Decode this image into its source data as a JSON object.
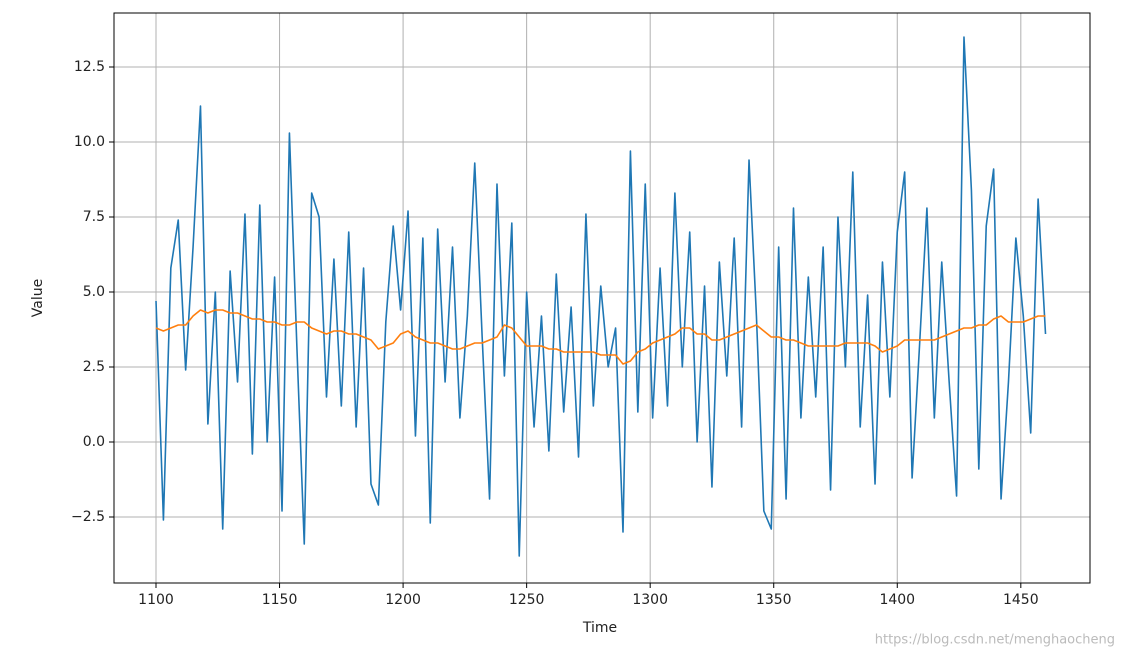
{
  "chart_data": {
    "type": "line",
    "xlabel": "Time",
    "ylabel": "Value",
    "annotation": "https://blog.csdn.net/menghaocheng",
    "x": [
      1100,
      1103,
      1106,
      1109,
      1112,
      1115,
      1118,
      1121,
      1124,
      1127,
      1130,
      1133,
      1136,
      1139,
      1142,
      1145,
      1148,
      1151,
      1154,
      1157,
      1160,
      1163,
      1166,
      1169,
      1172,
      1175,
      1178,
      1181,
      1184,
      1187,
      1190,
      1193,
      1196,
      1199,
      1202,
      1205,
      1208,
      1211,
      1214,
      1217,
      1220,
      1223,
      1226,
      1229,
      1232,
      1235,
      1238,
      1241,
      1244,
      1247,
      1250,
      1253,
      1256,
      1259,
      1262,
      1265,
      1268,
      1271,
      1274,
      1277,
      1280,
      1283,
      1286,
      1289,
      1292,
      1295,
      1298,
      1301,
      1304,
      1307,
      1310,
      1313,
      1316,
      1319,
      1322,
      1325,
      1328,
      1331,
      1334,
      1337,
      1340,
      1343,
      1346,
      1349,
      1352,
      1355,
      1358,
      1361,
      1364,
      1367,
      1370,
      1373,
      1376,
      1379,
      1382,
      1385,
      1388,
      1391,
      1394,
      1397,
      1400,
      1403,
      1406,
      1409,
      1412,
      1415,
      1418,
      1421,
      1424,
      1427,
      1430,
      1433,
      1436,
      1439,
      1442,
      1445,
      1448,
      1451,
      1454,
      1457,
      1460
    ],
    "series": [
      {
        "color": "#1f77b4",
        "values": [
          4.7,
          -2.6,
          5.8,
          7.4,
          2.4,
          6.5,
          11.2,
          0.6,
          5.0,
          -2.9,
          5.7,
          2.0,
          7.6,
          -0.4,
          7.9,
          0.0,
          5.5,
          -2.3,
          10.3,
          3.2,
          -3.4,
          8.3,
          7.5,
          1.5,
          6.1,
          1.2,
          7.0,
          0.5,
          5.8,
          -1.4,
          -2.1,
          4.0,
          7.2,
          4.4,
          7.7,
          0.2,
          6.8,
          -2.7,
          7.1,
          2.0,
          6.5,
          0.8,
          4.2,
          9.3,
          3.5,
          -1.9,
          8.6,
          2.2,
          7.3,
          -3.8,
          5.0,
          0.5,
          4.2,
          -0.3,
          5.6,
          1.0,
          4.5,
          -0.5,
          7.6,
          1.2,
          5.2,
          2.5,
          3.8,
          -3.0,
          9.7,
          1.0,
          8.6,
          0.8,
          5.8,
          1.2,
          8.3,
          2.5,
          7.0,
          0.0,
          5.2,
          -1.5,
          6.0,
          2.2,
          6.8,
          0.5,
          9.4,
          4.2,
          -2.3,
          -2.9,
          6.5,
          -1.9,
          7.8,
          0.8,
          5.5,
          1.5,
          6.5,
          -1.6,
          7.5,
          2.5,
          9.0,
          0.5,
          4.9,
          -1.4,
          6.0,
          1.5,
          7.0,
          9.0,
          -1.2,
          3.2,
          7.8,
          0.8,
          6.0,
          2.0,
          -1.8,
          13.5,
          8.4,
          -0.9,
          7.2,
          9.1,
          -1.9,
          2.0,
          6.8,
          4.2,
          0.3,
          8.1,
          3.6
        ]
      },
      {
        "color": "#ff7f0e",
        "values": [
          3.8,
          3.7,
          3.8,
          3.9,
          3.9,
          4.2,
          4.4,
          4.3,
          4.4,
          4.4,
          4.3,
          4.3,
          4.2,
          4.1,
          4.1,
          4.0,
          4.0,
          3.9,
          3.9,
          4.0,
          4.0,
          3.8,
          3.7,
          3.6,
          3.7,
          3.7,
          3.6,
          3.6,
          3.5,
          3.4,
          3.1,
          3.2,
          3.3,
          3.6,
          3.7,
          3.5,
          3.4,
          3.3,
          3.3,
          3.2,
          3.1,
          3.1,
          3.2,
          3.3,
          3.3,
          3.4,
          3.5,
          3.9,
          3.8,
          3.5,
          3.2,
          3.2,
          3.2,
          3.1,
          3.1,
          3.0,
          3.0,
          3.0,
          3.0,
          3.0,
          2.9,
          2.9,
          2.9,
          2.6,
          2.7,
          3.0,
          3.1,
          3.3,
          3.4,
          3.5,
          3.6,
          3.8,
          3.8,
          3.6,
          3.6,
          3.4,
          3.4,
          3.5,
          3.6,
          3.7,
          3.8,
          3.9,
          3.7,
          3.5,
          3.5,
          3.4,
          3.4,
          3.3,
          3.2,
          3.2,
          3.2,
          3.2,
          3.2,
          3.3,
          3.3,
          3.3,
          3.3,
          3.2,
          3.0,
          3.1,
          3.2,
          3.4,
          3.4,
          3.4,
          3.4,
          3.4,
          3.5,
          3.6,
          3.7,
          3.8,
          3.8,
          3.9,
          3.9,
          4.1,
          4.2,
          4.0,
          4.0,
          4.0,
          4.1,
          4.2,
          4.2
        ]
      }
    ],
    "xlim": [
      1083,
      1478
    ],
    "ylim": [
      -4.7,
      14.3
    ],
    "xticks": [
      1100,
      1150,
      1200,
      1250,
      1300,
      1350,
      1400,
      1450
    ],
    "yticks": [
      {
        "value": -2.5,
        "label": "−2.5"
      },
      {
        "value": 0,
        "label": "0.0"
      },
      {
        "value": 2.5,
        "label": "2.5"
      },
      {
        "value": 5,
        "label": "5.0"
      },
      {
        "value": 7.5,
        "label": "7.5"
      },
      {
        "value": 10,
        "label": "10.0"
      },
      {
        "value": 12.5,
        "label": "12.5"
      }
    ],
    "grid": true
  }
}
